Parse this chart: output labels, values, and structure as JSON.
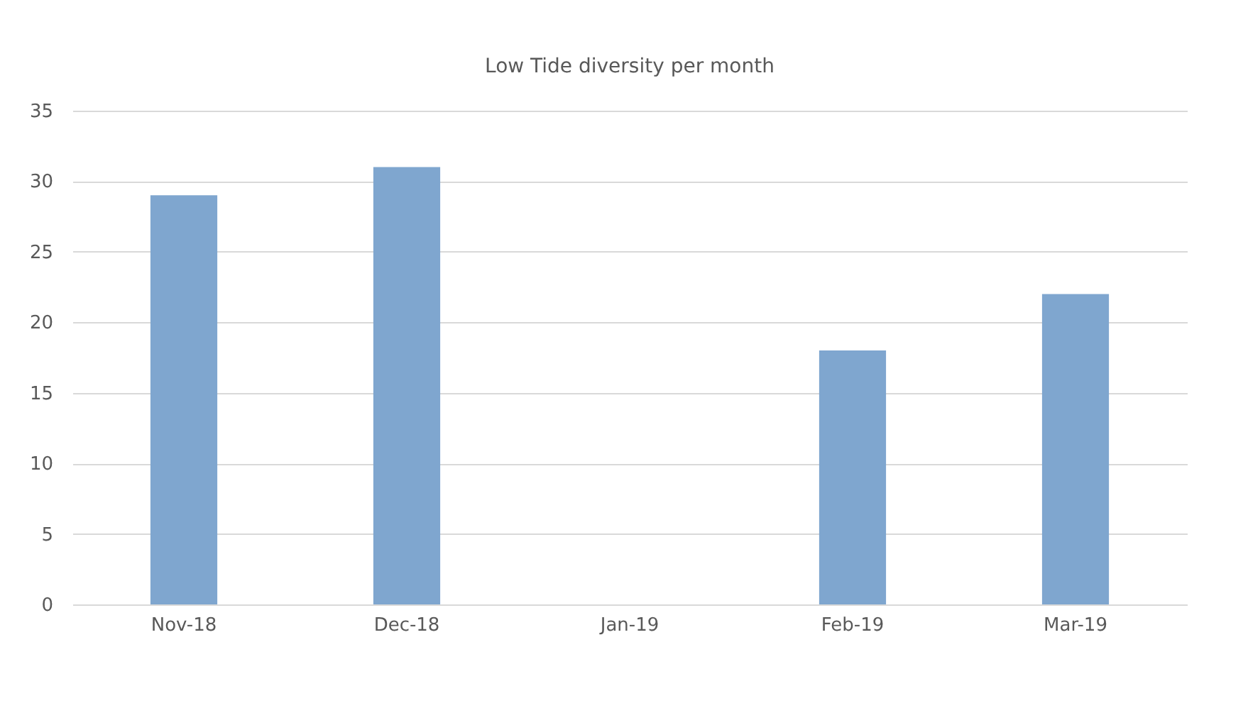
{
  "chart_data": {
    "type": "bar",
    "title": "Low Tide diversity per month",
    "categories": [
      "Nov-18",
      "Dec-18",
      "Jan-19",
      "Feb-19",
      "Mar-19"
    ],
    "values": [
      29,
      31,
      0,
      18,
      22
    ],
    "color": "#7fa6cf",
    "ylim": [
      0,
      35
    ],
    "yticks": [
      0,
      5,
      10,
      15,
      20,
      25,
      30,
      35
    ],
    "grid": "y"
  }
}
